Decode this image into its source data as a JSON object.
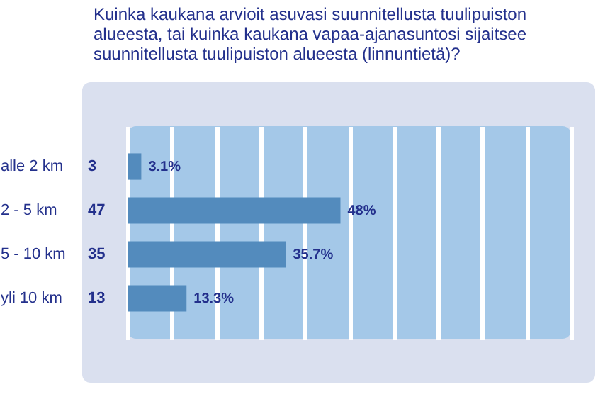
{
  "chart_data": {
    "type": "bar",
    "orientation": "horizontal",
    "title": "Kuinka kaukana arvioit asuvasi suunnitellusta tuulipuiston alueesta, tai kuinka kaukana vapaa-ajanasuntosi sijaitsee suunnitellusta tuulipuiston alueesta (linnuntietä)?",
    "categories": [
      "alle 2 km",
      "2 - 5 km",
      "5 - 10 km",
      "yli 10 km"
    ],
    "values": [
      3.1,
      48,
      35.7,
      13.3
    ],
    "value_labels": [
      "3.1%",
      "48%",
      "35.7%",
      "13.3%"
    ],
    "color": "#538bbd",
    "xlim": [
      0,
      100
    ],
    "tick_labels": "y",
    "grid": "x",
    "annotations": [
      "3",
      "47",
      "35",
      "13"
    ]
  }
}
